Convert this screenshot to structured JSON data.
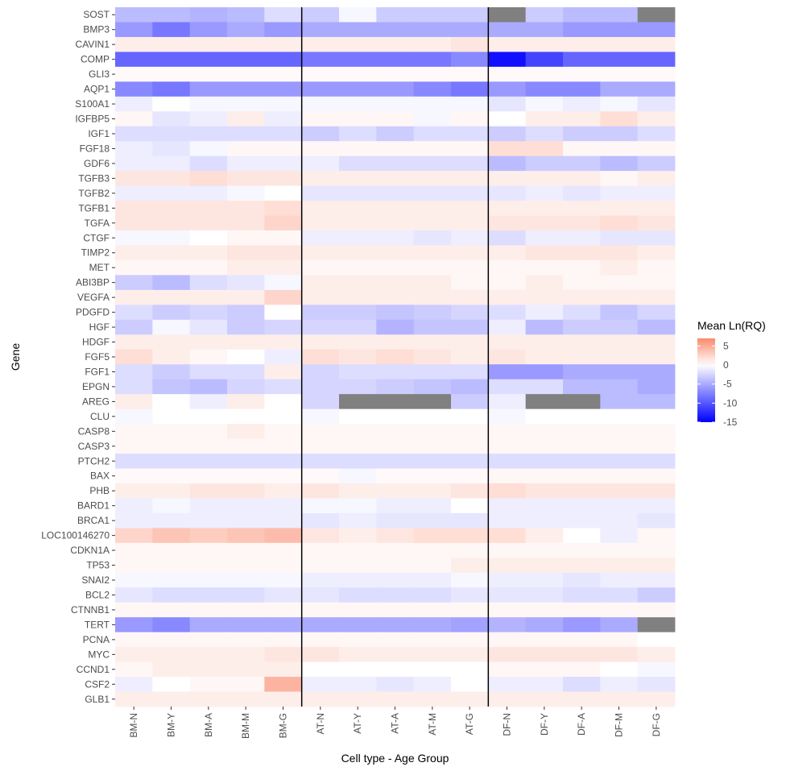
{
  "chart_data": {
    "type": "heatmap",
    "title": "",
    "xlabel": "Cell type - Age Group",
    "ylabel": "Gene",
    "x": [
      "BM-N",
      "BM-Y",
      "BM-A",
      "BM-M",
      "BM-G",
      "AT-N",
      "AT-Y",
      "AT-A",
      "AT-M",
      "AT-G",
      "DF-N",
      "DF-Y",
      "DF-A",
      "DF-M",
      "DF-G"
    ],
    "genes": [
      "SOST",
      "BMP3",
      "CAVIN1",
      "COMP",
      "GLI3",
      "AQP1",
      "S100A1",
      "IGFBP5",
      "IGF1",
      "FGF18",
      "GDF6",
      "TGFB3",
      "TGFB2",
      "TGFB1",
      "TGFA",
      "CTGF",
      "TIMP2",
      "MET",
      "ABI3BP",
      "VEGFA",
      "PDGFD",
      "HGF",
      "HDGF",
      "FGF5",
      "FGF1",
      "EPGN",
      "AREG",
      "CLU",
      "CASP8",
      "CASP3",
      "PTCH2",
      "BAX",
      "PHB",
      "BARD1",
      "BRCA1",
      "LOC100146270",
      "CDKN1A",
      "TP53",
      "SNAI2",
      "BCL2",
      "CTNNB1",
      "TERT",
      "PCNA",
      "MYC",
      "CCND1",
      "CSF2",
      "GLB1"
    ],
    "values": [
      [
        -4,
        -4,
        -4.5,
        -4,
        -2,
        -3,
        -0.5,
        -3,
        -3,
        -3,
        null,
        -3,
        -4,
        -4,
        null
      ],
      [
        -6,
        -8,
        -6,
        -5,
        -6,
        -5,
        -5,
        -5,
        -5,
        -5,
        -5,
        -5,
        -6,
        -6,
        -6
      ],
      [
        1,
        1,
        1,
        1,
        1,
        1,
        1,
        1,
        1,
        1.5,
        1,
        1,
        1,
        1,
        1
      ],
      [
        -9,
        -9,
        -9,
        -9,
        -9,
        -8,
        -8,
        -8,
        -8,
        -7,
        -14,
        -11,
        -9,
        -9,
        -9
      ],
      [
        0.3,
        0.3,
        0.3,
        0.3,
        0.3,
        0.3,
        0.3,
        0.3,
        0.3,
        0.3,
        0.3,
        0.3,
        0.3,
        0.3,
        0.3
      ],
      [
        -7,
        -8,
        -6,
        -6,
        -6,
        -6,
        -6,
        -6,
        -7,
        -8,
        -6,
        -7,
        -7,
        -5,
        -5
      ],
      [
        -1,
        0,
        -0.5,
        -0.5,
        -0.5,
        -0.5,
        -0.5,
        -0.5,
        -0.5,
        -0.5,
        -1.5,
        -0.5,
        -1,
        -0.5,
        -1.5
      ],
      [
        0.5,
        -1.5,
        -1,
        1,
        -1,
        0.5,
        0.5,
        0.5,
        -0.5,
        0.5,
        0,
        1,
        1,
        2,
        1
      ],
      [
        -2,
        -2,
        -2,
        -2,
        -2,
        -3,
        -2,
        -3,
        -2,
        -2,
        -3,
        -2,
        -3,
        -3,
        -2
      ],
      [
        -1,
        -1.5,
        -0.5,
        0.5,
        0.5,
        0.5,
        0.5,
        0.5,
        0.5,
        0.5,
        2,
        2,
        0.5,
        0.5,
        0.5
      ],
      [
        -1,
        -1,
        -2,
        -1,
        -1,
        -1,
        -2,
        -2,
        -2,
        -2,
        -4,
        -3,
        -3,
        -4,
        -3
      ],
      [
        1.5,
        1.5,
        2,
        1.5,
        1.5,
        1,
        1,
        1,
        1,
        1,
        1,
        1,
        1,
        0.5,
        1
      ],
      [
        -1,
        -1,
        -1,
        -0.5,
        0,
        -1.5,
        -1.5,
        -1.5,
        -1.5,
        -1.5,
        -1.5,
        -1,
        -1.5,
        -1,
        -1
      ],
      [
        1.5,
        1.5,
        1.5,
        1.5,
        2,
        1,
        1,
        1,
        1,
        1,
        1,
        1,
        1,
        1,
        1
      ],
      [
        1.5,
        1.5,
        1.5,
        1.5,
        2.5,
        1,
        1,
        1,
        1,
        1,
        1.5,
        1.5,
        1.5,
        2,
        1.5
      ],
      [
        -0.5,
        -0.5,
        0,
        0.5,
        0.5,
        -1,
        -1,
        -1,
        -1.5,
        -1,
        -2,
        -1,
        -1,
        -1.5,
        -1.5
      ],
      [
        1,
        1,
        1,
        1.5,
        1.5,
        1,
        1,
        1,
        1,
        1,
        1,
        1.5,
        1.5,
        1.5,
        1
      ],
      [
        0.5,
        0.5,
        0.5,
        1,
        1,
        0.5,
        0.5,
        0.5,
        0.5,
        0.5,
        0.5,
        0.5,
        0.5,
        1,
        0.5
      ],
      [
        -3,
        -4,
        -2,
        -1.5,
        -0.5,
        1,
        1,
        1,
        1,
        0.5,
        0.5,
        1,
        0.5,
        0.5,
        0.5
      ],
      [
        1,
        1,
        1,
        1,
        2.5,
        1,
        1,
        1,
        1,
        1,
        1,
        1,
        1,
        1,
        1
      ],
      [
        -2,
        -3,
        -2.5,
        -3,
        0,
        -3,
        -3,
        -3.5,
        -3,
        -2.5,
        -2,
        -1,
        -2,
        -3.5,
        -2.5
      ],
      [
        -3,
        -0.5,
        -1.5,
        -3,
        -2.5,
        -2.5,
        -2.5,
        -4.5,
        -3.5,
        -3.5,
        -1,
        -4,
        -3,
        -3,
        -4
      ],
      [
        1,
        1,
        1,
        1,
        1,
        1,
        1,
        1,
        1,
        1,
        1,
        1,
        1,
        1,
        1
      ],
      [
        2,
        1,
        0.5,
        0,
        -1,
        2,
        1.5,
        2,
        1.5,
        1,
        1.5,
        1,
        1,
        1,
        1
      ],
      [
        -2,
        -3,
        -2,
        -2,
        1,
        -2.5,
        -2,
        -2,
        -2,
        -2,
        -6,
        -6,
        -5,
        -5,
        -5
      ],
      [
        -2,
        -3.5,
        -4,
        -2.5,
        -2,
        -2.5,
        -2.5,
        -3,
        -3.5,
        -4,
        -2,
        -2,
        -4,
        -4,
        -5
      ],
      [
        1,
        0,
        -1,
        1,
        0,
        -2.5,
        null,
        null,
        null,
        -3,
        -1,
        null,
        null,
        -4,
        -4
      ],
      [
        -0.5,
        0,
        0,
        0,
        0,
        -0.5,
        0,
        0,
        0,
        0,
        -0.5,
        0,
        0,
        0,
        0
      ],
      [
        0.5,
        0.5,
        0.5,
        1,
        0.5,
        0.5,
        0.5,
        0.5,
        0.5,
        0.5,
        0.5,
        0.5,
        0.5,
        0.5,
        0.5
      ],
      [
        0.5,
        0.5,
        0.5,
        0.5,
        0.5,
        0.5,
        0.5,
        0.5,
        0.5,
        0.5,
        0.5,
        0.5,
        0.5,
        0.5,
        0.5
      ],
      [
        -2,
        -2,
        -2,
        -2,
        -2,
        -2,
        -2,
        -2,
        -2,
        -2,
        -2,
        -2,
        -2,
        -2,
        -2
      ],
      [
        0.3,
        0.3,
        0.3,
        0.3,
        0.3,
        0.3,
        -0.5,
        0.3,
        0.3,
        0.3,
        0.5,
        0.5,
        0.5,
        0.5,
        0.5
      ],
      [
        1,
        1,
        1.5,
        1.5,
        1,
        1.5,
        1,
        1,
        1,
        1.5,
        2,
        1.5,
        1.5,
        1.5,
        1.5
      ],
      [
        -1,
        -0.5,
        -1,
        -1,
        -1,
        -0.5,
        -0.5,
        -1,
        -1,
        0,
        -1,
        -1,
        -1,
        -1,
        -1
      ],
      [
        -1,
        -1,
        -1,
        -1,
        -1,
        -1.5,
        -1,
        -1.5,
        -1.5,
        -1.5,
        -1,
        -1,
        -1,
        -1,
        -1.5
      ],
      [
        2.5,
        3.5,
        3,
        3.5,
        4,
        1.5,
        1,
        1.5,
        2,
        2,
        2,
        1,
        0,
        -1,
        0.5
      ],
      [
        0.5,
        0.5,
        0.5,
        0.5,
        0.5,
        0.5,
        0.5,
        0.5,
        0.5,
        0.5,
        0.5,
        0.5,
        0.5,
        0.5,
        0.5
      ],
      [
        0.5,
        0.5,
        0.5,
        0.5,
        0.5,
        0.5,
        0.5,
        0.5,
        0.5,
        1,
        1,
        1,
        1,
        1,
        1
      ],
      [
        -0.5,
        -0.5,
        -0.5,
        -0.5,
        -0.5,
        -1,
        -1,
        -1,
        -1,
        -0.5,
        -1,
        -1,
        -1.5,
        -1,
        -1
      ],
      [
        -1.5,
        -2,
        -2,
        -2,
        -1.5,
        -1.5,
        -2,
        -2,
        -2,
        -1.5,
        -1.5,
        -1.5,
        -2,
        -2,
        -3
      ],
      [
        0.5,
        0.5,
        0.5,
        0.5,
        0.5,
        0.5,
        0.5,
        0.5,
        0.5,
        0.5,
        0.5,
        0.5,
        0.5,
        0.5,
        0.5
      ],
      [
        -6,
        -7,
        -5,
        -5,
        -5,
        -5,
        -5,
        -5,
        -5,
        -5.5,
        -4.5,
        -5,
        -6,
        -5,
        null
      ],
      [
        0.5,
        0.5,
        0.5,
        0.5,
        0.5,
        0.5,
        0.5,
        0.5,
        0.5,
        0.5,
        0.5,
        0.5,
        0.5,
        0.5,
        0
      ],
      [
        1,
        1,
        1,
        1,
        1.5,
        1.5,
        1,
        1,
        1,
        1,
        1.5,
        1.5,
        1.5,
        1.5,
        1
      ],
      [
        0.5,
        1,
        1,
        1,
        1,
        0,
        0,
        0,
        0,
        0,
        0.5,
        0.5,
        0.5,
        0,
        -0.5
      ],
      [
        -1,
        0,
        0.5,
        0.5,
        4.5,
        -1,
        -1,
        -1.5,
        -1,
        0,
        -1,
        -1,
        -2,
        -1,
        -1.5
      ],
      [
        1,
        1,
        1,
        1,
        1,
        1,
        1,
        1,
        1,
        1,
        1,
        1,
        1,
        1,
        1
      ]
    ],
    "missing_color": "#808080",
    "color_scale": {
      "low": "#0000ff",
      "mid": "#ffffff",
      "high": "#fb8a6c",
      "min": -15,
      "max": 7,
      "midpoint": 0
    },
    "group_dividers_after": [
      "BM-G",
      "AT-G"
    ],
    "legend": {
      "title": "Mean Ln(RQ)",
      "breaks": [
        5,
        0,
        -5,
        -10,
        -15
      ],
      "labels": [
        "5",
        "0",
        "-5",
        "-10",
        "-15"
      ],
      "position": "right"
    },
    "panel_background": "#ebebeb"
  }
}
